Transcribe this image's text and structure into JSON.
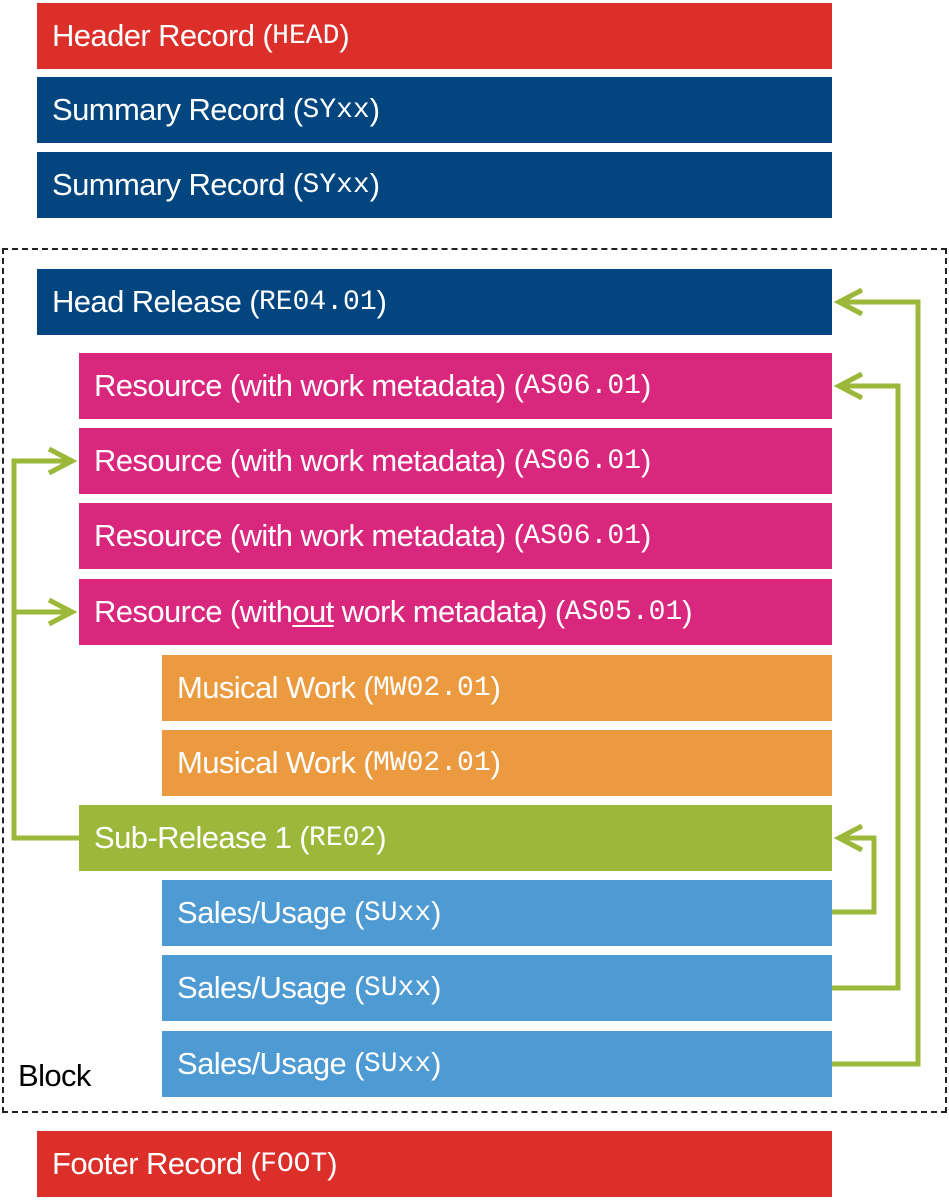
{
  "header_record": {
    "label": "Header Record (",
    "code": "HEAD",
    "close": ")"
  },
  "summary_records": [
    {
      "label": "Summary Record (",
      "code": "SYxx",
      "close": ")"
    },
    {
      "label": "Summary Record (",
      "code": "SYxx",
      "close": ")"
    }
  ],
  "block": {
    "label": "Block",
    "head_release": {
      "label": "Head Release (",
      "code": "RE04.01",
      "close": ")"
    },
    "resources": [
      {
        "label": "Resource (with work metadata) (",
        "code": "AS06.01",
        "close": ")"
      },
      {
        "label": "Resource (with work metadata) (",
        "code": "AS06.01",
        "close": ")"
      },
      {
        "label": "Resource (with work metadata) (",
        "code": "AS06.01",
        "close": ")"
      }
    ],
    "resource_without": {
      "pre": "Resource (with",
      "underlined": "out",
      "post": " work metadata) (",
      "code": "AS05.01",
      "close": ")"
    },
    "musical_works": [
      {
        "label": "Musical Work (",
        "code": "MW02.01",
        "close": ")"
      },
      {
        "label": "Musical Work (",
        "code": "MW02.01",
        "close": ")"
      }
    ],
    "sub_release": {
      "label": "Sub-Release 1 (",
      "code": "RE02",
      "close": ")"
    },
    "sales_usage": [
      {
        "label": "Sales/Usage (",
        "code": "SUxx",
        "close": ")"
      },
      {
        "label": "Sales/Usage (",
        "code": "SUxx",
        "close": ")"
      },
      {
        "label": "Sales/Usage (",
        "code": "SUxx",
        "close": ")"
      }
    ]
  },
  "footer_record": {
    "label": "Footer Record (",
    "code": "FOOT",
    "close": ")"
  },
  "colors": {
    "header_footer": "#dc2f2a",
    "summary_release": "#03457f",
    "resource": "#d9277d",
    "musical_work": "#ec9a40",
    "sub_release": "#9bb83a",
    "sales_usage": "#4e9ad2",
    "arrow": "#9bb83a"
  }
}
